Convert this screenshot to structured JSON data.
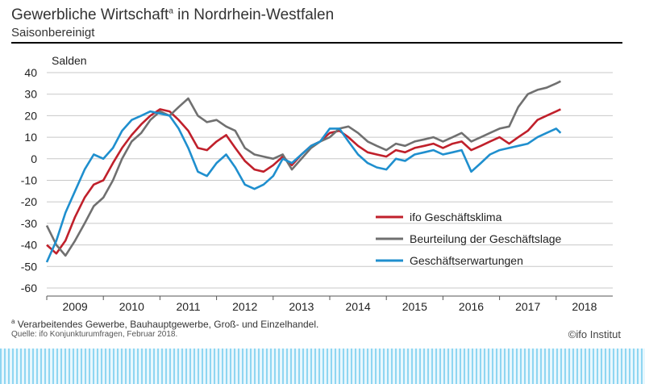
{
  "header": {
    "title": "Gewerbliche Wirtschaft",
    "title_sup": "a",
    "title_rest": " in Nordrhein-Westfalen",
    "subtitle": "Saisonbereinigt"
  },
  "footer": {
    "footnote_sup": "a",
    "footnote": " Verarbeitendes Gewerbe, Bauhauptgewerbe, Groß- und Einzelhandel.",
    "source": "Quelle: ifo Konjunkturumfragen, Februar 2018.",
    "brand": "©ifo Institut"
  },
  "chart_data": {
    "type": "line",
    "ylabel": "Salden",
    "ylim": [
      -60,
      40
    ],
    "yticks": [
      40,
      30,
      20,
      10,
      0,
      -10,
      -20,
      -30,
      -40,
      -50,
      -60
    ],
    "xlim": [
      2008.5,
      2018.5
    ],
    "xtick_labels": [
      "2009",
      "2010",
      "2011",
      "2012",
      "2013",
      "2014",
      "2015",
      "2016",
      "2017",
      "2018"
    ],
    "grid": true,
    "legend_position": "lower-right",
    "series": [
      {
        "name": "ifo Geschäftsklima",
        "color": "#c0202b",
        "x": [
          2008.5,
          2008.67,
          2008.83,
          2009.0,
          2009.17,
          2009.33,
          2009.5,
          2009.67,
          2009.83,
          2010.0,
          2010.17,
          2010.33,
          2010.5,
          2010.67,
          2010.83,
          2011.0,
          2011.17,
          2011.33,
          2011.5,
          2011.67,
          2011.83,
          2012.0,
          2012.17,
          2012.33,
          2012.5,
          2012.67,
          2012.83,
          2013.0,
          2013.17,
          2013.33,
          2013.5,
          2013.67,
          2013.83,
          2014.0,
          2014.17,
          2014.33,
          2014.5,
          2014.67,
          2014.83,
          2015.0,
          2015.17,
          2015.33,
          2015.5,
          2015.67,
          2015.83,
          2016.0,
          2016.17,
          2016.33,
          2016.5,
          2016.67,
          2016.83,
          2017.0,
          2017.17,
          2017.33,
          2017.5,
          2017.58
        ],
        "values": [
          -40,
          -44,
          -38,
          -27,
          -18,
          -12,
          -10,
          -2,
          5,
          11,
          16,
          20,
          23,
          22,
          18,
          13,
          5,
          4,
          8,
          11,
          5,
          -1,
          -5,
          -6,
          -3,
          1,
          -3,
          2,
          6,
          8,
          12,
          13,
          10,
          6,
          3,
          2,
          1,
          4,
          3,
          5,
          6,
          7,
          5,
          7,
          8,
          4,
          6,
          8,
          10,
          7,
          10,
          13,
          18,
          20,
          22,
          23
        ]
      },
      {
        "name": "Beurteilung der Geschäftslage",
        "color": "#707070",
        "x": [
          2008.5,
          2008.67,
          2008.83,
          2009.0,
          2009.17,
          2009.33,
          2009.5,
          2009.67,
          2009.83,
          2010.0,
          2010.17,
          2010.33,
          2010.5,
          2010.67,
          2010.83,
          2011.0,
          2011.17,
          2011.33,
          2011.5,
          2011.67,
          2011.83,
          2012.0,
          2012.17,
          2012.33,
          2012.5,
          2012.67,
          2012.83,
          2013.0,
          2013.17,
          2013.33,
          2013.5,
          2013.67,
          2013.83,
          2014.0,
          2014.17,
          2014.33,
          2014.5,
          2014.67,
          2014.83,
          2015.0,
          2015.17,
          2015.33,
          2015.5,
          2015.67,
          2015.83,
          2016.0,
          2016.17,
          2016.33,
          2016.5,
          2016.67,
          2016.83,
          2017.0,
          2017.17,
          2017.33,
          2017.5,
          2017.58
        ],
        "values": [
          -31,
          -40,
          -45,
          -38,
          -30,
          -22,
          -18,
          -10,
          0,
          8,
          12,
          18,
          22,
          20,
          24,
          28,
          20,
          17,
          18,
          15,
          13,
          5,
          2,
          1,
          0,
          2,
          -5,
          0,
          5,
          8,
          10,
          14,
          15,
          12,
          8,
          6,
          4,
          7,
          6,
          8,
          9,
          10,
          8,
          10,
          12,
          8,
          10,
          12,
          14,
          15,
          24,
          30,
          32,
          33,
          35,
          36
        ]
      },
      {
        "name": "Geschäftserwartungen",
        "color": "#1f8fce",
        "x": [
          2008.5,
          2008.67,
          2008.83,
          2009.0,
          2009.17,
          2009.33,
          2009.5,
          2009.67,
          2009.83,
          2010.0,
          2010.17,
          2010.33,
          2010.5,
          2010.67,
          2010.83,
          2011.0,
          2011.17,
          2011.33,
          2011.5,
          2011.67,
          2011.83,
          2012.0,
          2012.17,
          2012.33,
          2012.5,
          2012.67,
          2012.83,
          2013.0,
          2013.17,
          2013.33,
          2013.5,
          2013.67,
          2013.83,
          2014.0,
          2014.17,
          2014.33,
          2014.5,
          2014.67,
          2014.83,
          2015.0,
          2015.17,
          2015.33,
          2015.5,
          2015.67,
          2015.83,
          2016.0,
          2016.17,
          2016.33,
          2016.5,
          2016.67,
          2016.83,
          2017.0,
          2017.17,
          2017.33,
          2017.5,
          2017.58
        ],
        "values": [
          -48,
          -38,
          -25,
          -15,
          -5,
          2,
          0,
          5,
          13,
          18,
          20,
          22,
          21,
          20,
          14,
          5,
          -6,
          -8,
          -2,
          2,
          -4,
          -12,
          -14,
          -12,
          -8,
          0,
          -2,
          2,
          6,
          8,
          14,
          14,
          8,
          2,
          -2,
          -4,
          -5,
          0,
          -1,
          2,
          3,
          4,
          2,
          3,
          4,
          -6,
          -2,
          2,
          4,
          5,
          6,
          7,
          10,
          12,
          14,
          12
        ]
      }
    ]
  }
}
